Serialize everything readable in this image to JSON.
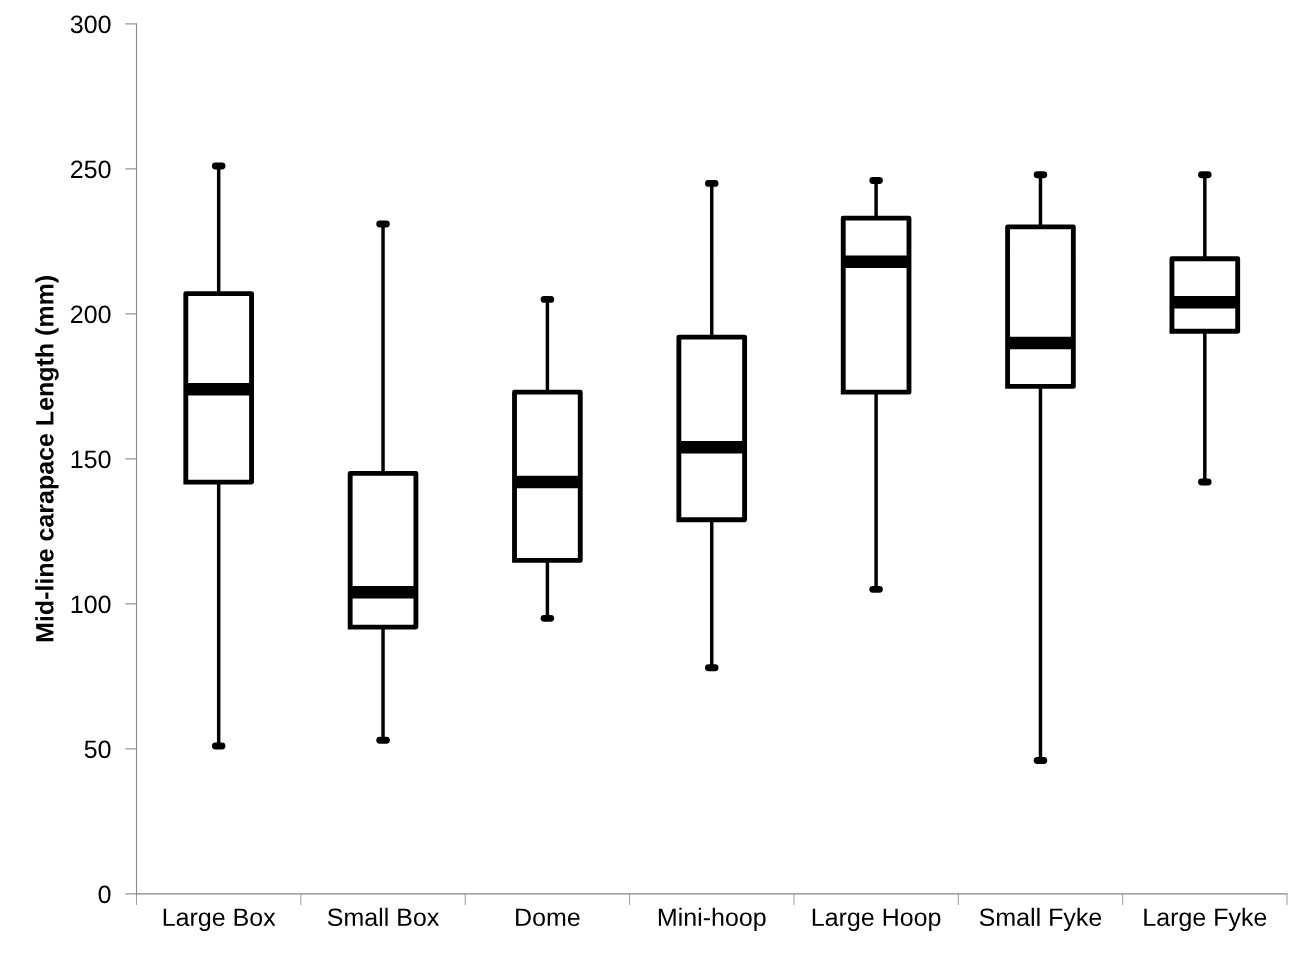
{
  "chart_data": {
    "type": "box",
    "ylabel": "Mid-line carapace Length (mm)",
    "categories": [
      "Large Box",
      "Small Box",
      "Dome",
      "Mini-hoop",
      "Large Hoop",
      "Small Fyke",
      "Large Fyke"
    ],
    "boxes": [
      {
        "low": 51,
        "q1": 142,
        "median": 174,
        "q3": 207,
        "high": 251
      },
      {
        "low": 53,
        "q1": 92,
        "median": 104,
        "q3": 145,
        "high": 231
      },
      {
        "low": 95,
        "q1": 115,
        "median": 142,
        "q3": 173,
        "high": 205
      },
      {
        "low": 78,
        "q1": 129,
        "median": 154,
        "q3": 192,
        "high": 245
      },
      {
        "low": 105,
        "q1": 173,
        "median": 218,
        "q3": 233,
        "high": 246
      },
      {
        "low": 46,
        "q1": 175,
        "median": 190,
        "q3": 230,
        "high": 248
      },
      {
        "low": 142,
        "q1": 194,
        "median": 204,
        "q3": 219,
        "high": 248
      }
    ],
    "color": "#000000",
    "ylim": [
      0,
      300
    ],
    "yticks": [
      0,
      50,
      100,
      150,
      200,
      250,
      300
    ],
    "grid": false
  }
}
